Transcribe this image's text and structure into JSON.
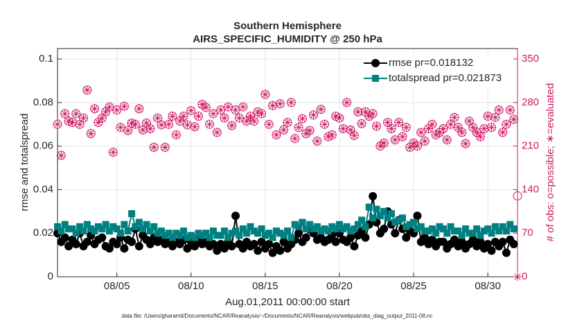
{
  "chart_data": {
    "type": "line",
    "title": [
      "Southern Hemisphere",
      "AIRS_SPECIFIC_HUMIDITY @ 250 hPa"
    ],
    "x_label": "Aug.01,2011 00:00:00 start",
    "y_label": "rmse and totalspread",
    "y2_label": "# of obs: o=possible; ∗=evaluated",
    "footnote": "data file: /Users/gharamti/Documents/NCAR/Reanalysis/~/Documents/NCAR/Reanalysis/webpub/obs_diag_output_2011-08.nc",
    "legend": "upper right",
    "grid": true,
    "xlim": [
      1,
      32
    ],
    "ylim": [
      0,
      0.1048
    ],
    "y2lim": [
      0,
      366.7
    ],
    "xticks": [
      {
        "value": 5,
        "label": "08/05"
      },
      {
        "value": 10,
        "label": "08/10"
      },
      {
        "value": 15,
        "label": "08/15"
      },
      {
        "value": 20,
        "label": "08/20"
      },
      {
        "value": 25,
        "label": "08/25"
      },
      {
        "value": 30,
        "label": "08/30"
      }
    ],
    "yticks": [
      0,
      0.02,
      0.04,
      0.06,
      0.08,
      0.1
    ],
    "y2ticks": [
      0,
      70,
      140,
      210,
      280,
      350
    ],
    "y2color": "#cc1a66",
    "x": [
      1,
      1.25,
      1.5,
      1.75,
      2,
      2.25,
      2.5,
      2.75,
      3,
      3.25,
      3.5,
      3.75,
      4,
      4.25,
      4.5,
      4.75,
      5,
      5.25,
      5.5,
      5.75,
      6,
      6.25,
      6.5,
      6.75,
      7,
      7.25,
      7.5,
      7.75,
      8,
      8.25,
      8.5,
      8.75,
      9,
      9.25,
      9.5,
      9.75,
      10,
      10.25,
      10.5,
      10.75,
      11,
      11.25,
      11.5,
      11.75,
      12,
      12.25,
      12.5,
      12.75,
      13,
      13.25,
      13.5,
      13.75,
      14,
      14.25,
      14.5,
      14.75,
      15,
      15.25,
      15.5,
      15.75,
      16,
      16.25,
      16.5,
      16.75,
      17,
      17.25,
      17.5,
      17.75,
      18,
      18.25,
      18.5,
      18.75,
      19,
      19.25,
      19.5,
      19.75,
      20,
      20.25,
      20.5,
      20.75,
      21,
      21.25,
      21.5,
      21.75,
      22,
      22.25,
      22.5,
      22.75,
      23,
      23.25,
      23.5,
      23.75,
      24,
      24.25,
      24.5,
      24.75,
      25,
      25.25,
      25.5,
      25.75,
      26,
      26.25,
      26.5,
      26.75,
      27,
      27.25,
      27.5,
      27.75,
      28,
      28.25,
      28.5,
      28.75,
      29,
      29.25,
      29.5,
      29.75,
      30,
      30.25,
      30.5,
      30.75,
      31,
      31.25,
      31.5,
      31.75,
      32
    ],
    "series": [
      {
        "name": "rmse pr=0.018132",
        "color": "#000000",
        "marker": "circle",
        "values": [
          0.02,
          0.016,
          0.018,
          0.014,
          0.017,
          0.015,
          0.02,
          0.014,
          0.016,
          0.019,
          0.015,
          0.017,
          0.018,
          0.014,
          0.013,
          0.016,
          0.015,
          0.018,
          0.013,
          0.017,
          0.016,
          0.022,
          0.014,
          0.019,
          0.017,
          0.015,
          0.018,
          0.016,
          0.017,
          0.015,
          0.016,
          0.014,
          0.016,
          0.015,
          0.017,
          0.013,
          0.016,
          0.014,
          0.017,
          0.015,
          0.016,
          0.014,
          0.015,
          0.012,
          0.015,
          0.013,
          0.016,
          0.014,
          0.028,
          0.015,
          0.013,
          0.016,
          0.014,
          0.015,
          0.012,
          0.016,
          0.013,
          0.015,
          0.011,
          0.014,
          0.012,
          0.016,
          0.013,
          0.015,
          0.017,
          0.02,
          0.016,
          0.018,
          0.022,
          0.02,
          0.017,
          0.018,
          0.016,
          0.017,
          0.019,
          0.016,
          0.02,
          0.017,
          0.016,
          0.018,
          0.014,
          0.019,
          0.021,
          0.018,
          0.024,
          0.037,
          0.025,
          0.02,
          0.022,
          0.03,
          0.024,
          0.02,
          0.026,
          0.022,
          0.018,
          0.021,
          0.02,
          0.028,
          0.016,
          0.018,
          0.015,
          0.017,
          0.014,
          0.016,
          0.016,
          0.013,
          0.015,
          0.017,
          0.014,
          0.016,
          0.013,
          0.015,
          0.017,
          0.014,
          0.016,
          0.013,
          0.015,
          0.012,
          0.016,
          0.014,
          0.016,
          0.011,
          0.017,
          0.015,
          null
        ]
      },
      {
        "name": "totalspread pr=0.021873",
        "color": "#008080",
        "marker": "square",
        "values": [
          0.023,
          0.021,
          0.024,
          0.022,
          0.022,
          0.02,
          0.023,
          0.021,
          0.024,
          0.022,
          0.021,
          0.023,
          0.022,
          0.024,
          0.021,
          0.023,
          0.022,
          0.02,
          0.024,
          0.021,
          0.029,
          0.023,
          0.025,
          0.022,
          0.024,
          0.021,
          0.023,
          0.02,
          0.021,
          0.019,
          0.02,
          0.018,
          0.02,
          0.019,
          0.021,
          0.018,
          0.019,
          0.018,
          0.02,
          0.019,
          0.02,
          0.018,
          0.021,
          0.019,
          0.019,
          0.021,
          0.018,
          0.02,
          0.021,
          0.019,
          0.022,
          0.02,
          0.023,
          0.021,
          0.02,
          0.022,
          0.019,
          0.02,
          0.018,
          0.021,
          0.02,
          0.019,
          0.021,
          0.018,
          0.024,
          0.023,
          0.025,
          0.022,
          0.024,
          0.022,
          0.023,
          0.021,
          0.022,
          0.021,
          0.023,
          0.022,
          0.024,
          0.022,
          0.023,
          0.021,
          0.022,
          0.024,
          0.026,
          0.023,
          0.032,
          0.027,
          0.031,
          0.028,
          0.03,
          0.027,
          0.029,
          0.025,
          0.026,
          0.027,
          0.023,
          0.024,
          0.025,
          0.022,
          0.023,
          0.021,
          0.021,
          0.022,
          0.02,
          0.023,
          0.022,
          0.02,
          0.023,
          0.021,
          0.021,
          0.019,
          0.022,
          0.02,
          0.02,
          0.022,
          0.019,
          0.021,
          0.022,
          0.02,
          0.023,
          0.021,
          0.023,
          0.021,
          0.024,
          0.022,
          null
        ]
      }
    ],
    "obs_possible": {
      "color": "#cc1a66",
      "axis": "y2",
      "values": [
        245,
        195,
        262,
        250,
        248,
        262,
        245,
        255,
        300,
        230,
        270,
        248,
        255,
        265,
        273,
        200,
        268,
        240,
        274,
        235,
        247,
        245,
        270,
        236,
        247,
        238,
        208,
        255,
        244,
        208,
        245,
        258,
        228,
        250,
        258,
        244,
        267,
        241,
        258,
        277,
        272,
        245,
        262,
        232,
        268,
        255,
        273,
        243,
        268,
        255,
        273,
        250,
        258,
        250,
        265,
        262,
        293,
        245,
        275,
        228,
        278,
        236,
        248,
        280,
        222,
        240,
        254,
        230,
        235,
        260,
        218,
        269,
        245,
        225,
        228,
        258,
        255,
        238,
        280,
        236,
        227,
        265,
        246,
        265,
        258,
        262,
        242,
        210,
        215,
        248,
        238,
        220,
        248,
        225,
        240,
        208,
        215,
        210,
        232,
        218,
        238,
        245,
        228,
        232,
        238,
        220,
        245,
        256,
        240,
        232,
        214,
        250,
        240,
        232,
        225,
        238,
        258,
        240,
        256,
        268,
        232,
        245,
        268,
        253,
        130
      ]
    },
    "obs_evaluated": {
      "color": "#cc1a66",
      "axis": "y2",
      "values": [
        245,
        195,
        262,
        250,
        248,
        262,
        245,
        255,
        300,
        230,
        270,
        248,
        255,
        265,
        273,
        200,
        268,
        240,
        274,
        235,
        247,
        245,
        270,
        236,
        247,
        238,
        208,
        255,
        244,
        208,
        245,
        258,
        228,
        250,
        258,
        244,
        267,
        241,
        258,
        277,
        272,
        245,
        262,
        232,
        268,
        255,
        273,
        243,
        268,
        255,
        273,
        250,
        258,
        250,
        265,
        262,
        293,
        245,
        275,
        228,
        278,
        236,
        248,
        280,
        222,
        240,
        254,
        230,
        235,
        260,
        218,
        269,
        245,
        225,
        228,
        258,
        255,
        238,
        280,
        236,
        227,
        265,
        246,
        265,
        258,
        262,
        242,
        210,
        215,
        248,
        238,
        220,
        248,
        225,
        240,
        208,
        215,
        210,
        232,
        218,
        238,
        245,
        228,
        232,
        238,
        220,
        245,
        256,
        240,
        232,
        214,
        250,
        240,
        232,
        225,
        238,
        258,
        240,
        256,
        268,
        232,
        245,
        268,
        253,
        0
      ]
    }
  }
}
